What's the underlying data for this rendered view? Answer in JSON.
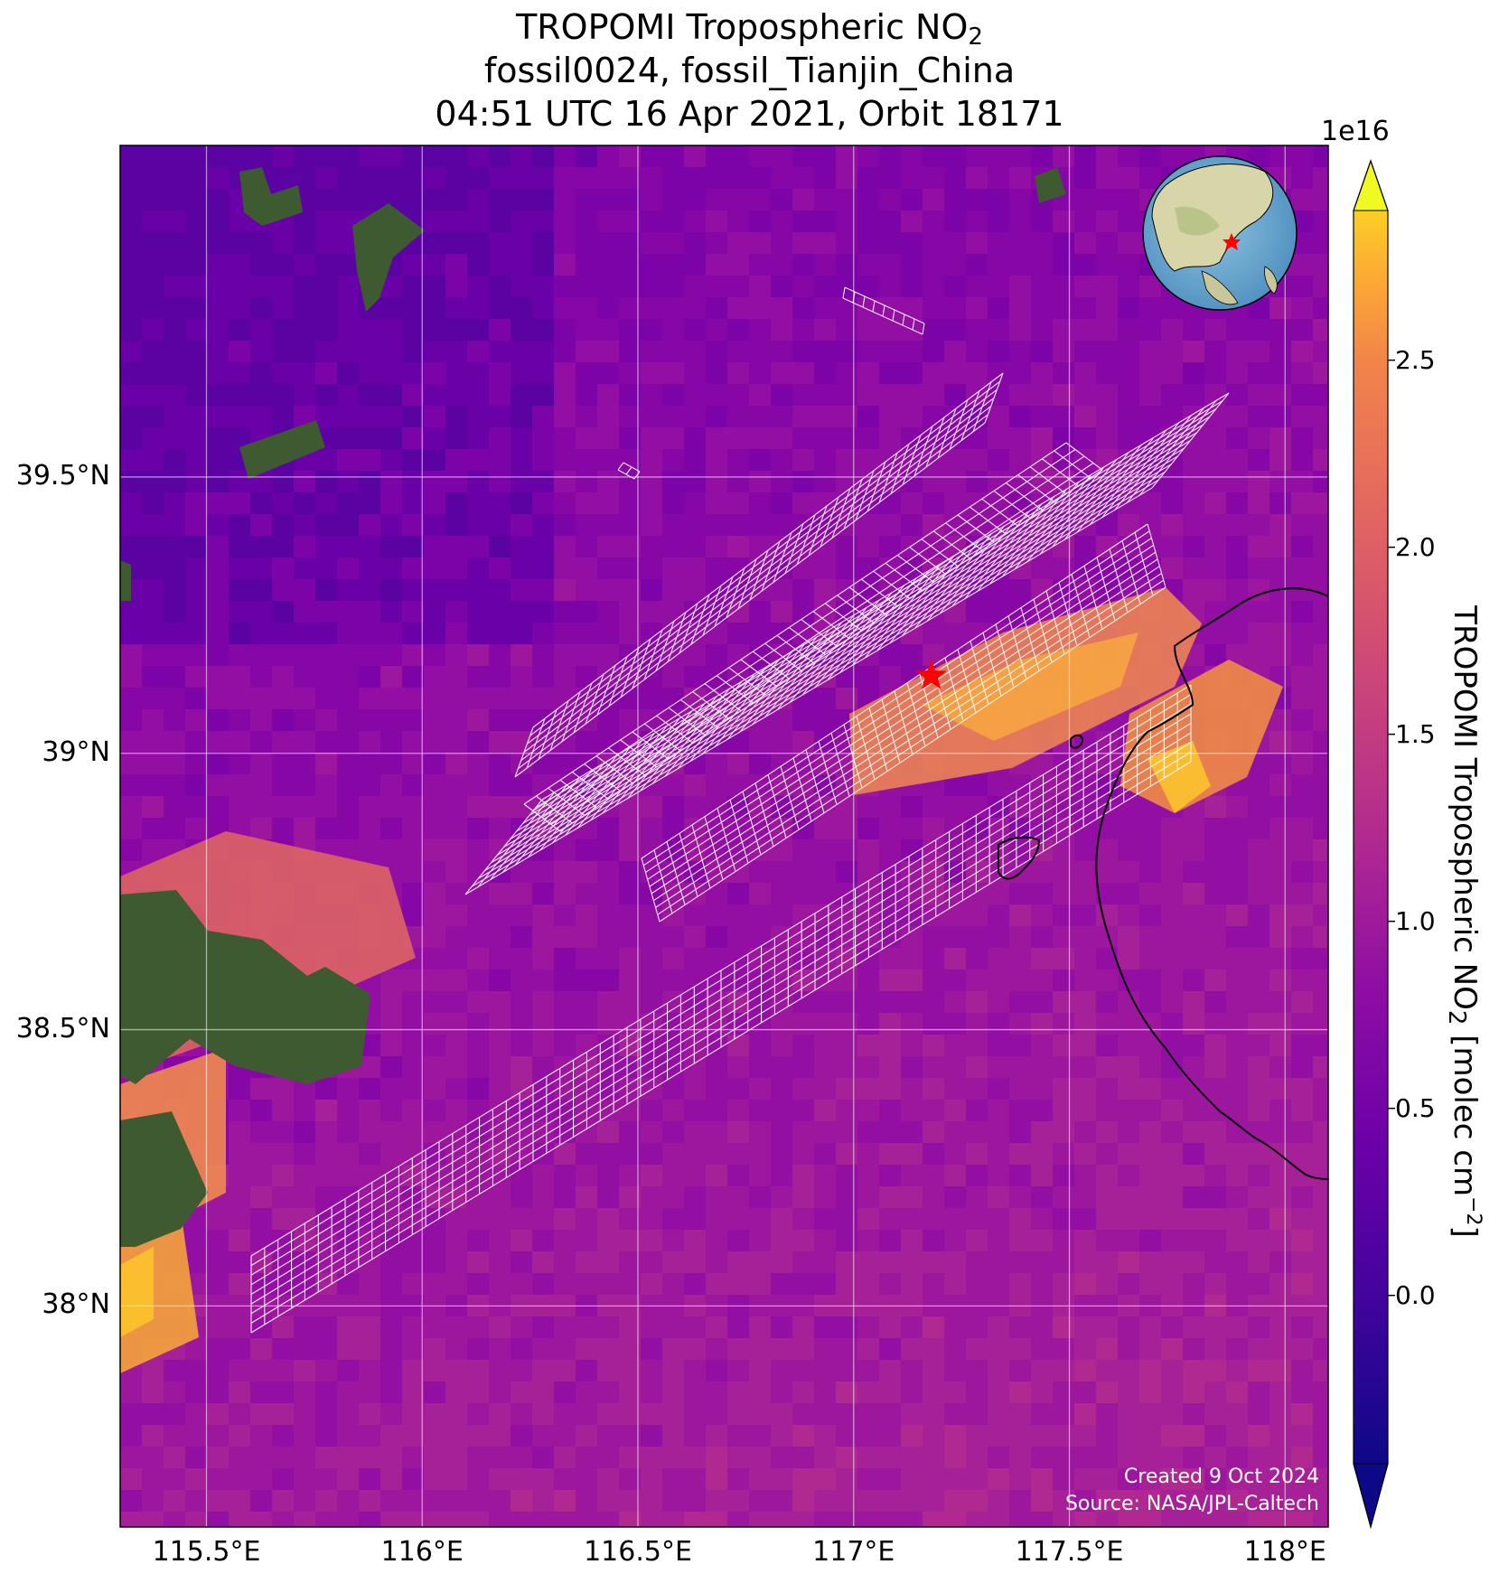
{
  "title": {
    "line1_prefix": "TROPOMI Tropospheric NO",
    "line1_sub": "2",
    "line2": "fossil0024, fossil_Tianjin_China",
    "line3": "04:51 UTC 16 Apr 2021, Orbit 18171"
  },
  "map": {
    "lon_range": [
      115.3,
      118.1
    ],
    "lat_range": [
      37.6,
      40.1
    ],
    "lon_ticks": [
      "115.5°E",
      "116°E",
      "116.5°E",
      "117°E",
      "117.5°E",
      "118°E"
    ],
    "lon_tick_values": [
      115.5,
      116.0,
      116.5,
      117.0,
      117.5,
      118.0
    ],
    "lat_ticks": [
      "39.5°N",
      "39°N",
      "38.5°N",
      "38°N"
    ],
    "lat_tick_values": [
      39.5,
      39.0,
      38.5,
      38.0
    ],
    "site_marker": {
      "lon": 117.18,
      "lat": 39.14,
      "symbol": "star",
      "color": "#ff0000"
    },
    "inset_globe": "globe-centered-on-east-asia-with-site-star",
    "credit_line1": "Created 9 Oct 2024",
    "credit_line2": "Source: NASA/JPL-Caltech",
    "grid": true
  },
  "colorbar": {
    "label_prefix": "TROPOMI Tropospheric NO",
    "label_sub": "2",
    "label_mid": " [molec cm",
    "label_sup": "−2",
    "label_suffix": "]",
    "exponent": "1e16",
    "ticks": [
      "0.0",
      "0.5",
      "1.0",
      "1.5",
      "2.0",
      "2.5"
    ],
    "tick_values": [
      0.0,
      0.5,
      1.0,
      1.5,
      2.0,
      2.5
    ],
    "vmin": -0.45,
    "vmax": 2.9,
    "colormap": "plasma",
    "extend": "both"
  },
  "chart_data": {
    "type": "heatmap",
    "variable": "TROPOMI Tropospheric NO2 [molec cm−2]",
    "scale_exponent": "1e16",
    "colormap": "plasma",
    "site": {
      "name": "fossil_Tianjin_China",
      "lon": 117.18,
      "lat": 39.14
    },
    "high_plume_peak_approx": 2.5,
    "background_approx": 0.4
  }
}
